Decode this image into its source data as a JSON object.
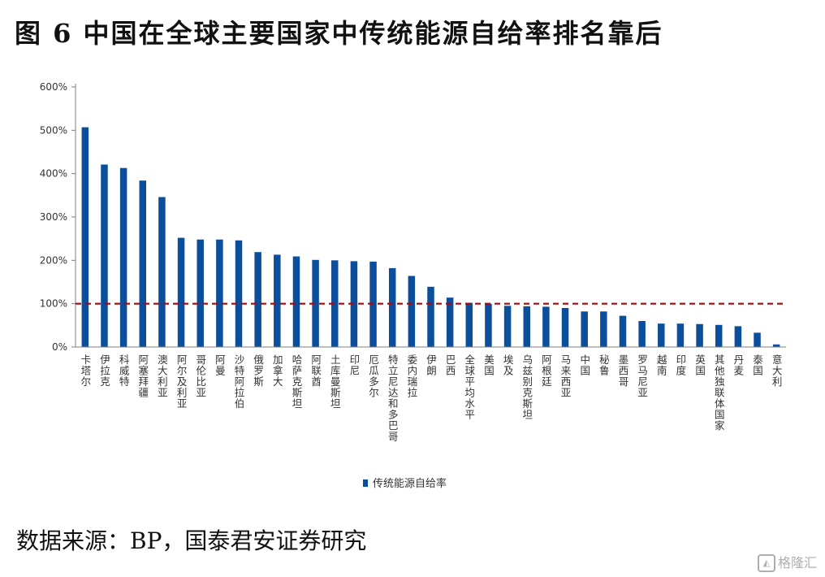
{
  "figure": {
    "title": "图 6 中国在全球主要国家中传统能源自给率排名靠后",
    "source": "数据来源：BP，国泰君安证券研究",
    "watermark": "格隆汇"
  },
  "colors": {
    "bar": "#0b4f9c",
    "reference_line": "#c00000",
    "axis": "#7f7f7f",
    "text": "#333333"
  },
  "chart_data": {
    "type": "bar",
    "title": "",
    "xlabel": "",
    "ylabel": "",
    "ylim": [
      0,
      600
    ],
    "yticks": [
      "0%",
      "100%",
      "200%",
      "300%",
      "400%",
      "500%",
      "600%"
    ],
    "grid": false,
    "legend_position": "bottom",
    "reference_line": {
      "value": 100,
      "style": "dashed"
    },
    "categories": [
      "卡塔尔",
      "伊拉克",
      "科威特",
      "阿塞拜疆",
      "澳大利亚",
      "阿尔及利亚",
      "哥伦比亚",
      "阿曼",
      "沙特阿拉伯",
      "俄罗斯",
      "加拿大",
      "哈萨克斯坦",
      "阿联酋",
      "土库曼斯坦",
      "印尼",
      "厄瓜多尔",
      "特立尼达和多巴哥",
      "委内瑞拉",
      "伊朗",
      "巴西",
      "全球平均水平",
      "美国",
      "埃及",
      "乌兹别克斯坦",
      "阿根廷",
      "马来西亚",
      "中国",
      "秘鲁",
      "墨西哥",
      "罗马尼亚",
      "越南",
      "印度",
      "英国",
      "其他独联体国家",
      "丹麦",
      "泰国",
      "意大利"
    ],
    "series": [
      {
        "name": "传统能源自给率",
        "values": [
          507,
          421,
          413,
          384,
          346,
          252,
          248,
          248,
          246,
          219,
          213,
          209,
          201,
          200,
          198,
          197,
          182,
          164,
          139,
          114,
          102,
          100,
          95,
          94,
          93,
          90,
          82,
          82,
          72,
          60,
          54,
          54,
          53,
          51,
          48,
          33,
          6
        ]
      }
    ]
  }
}
